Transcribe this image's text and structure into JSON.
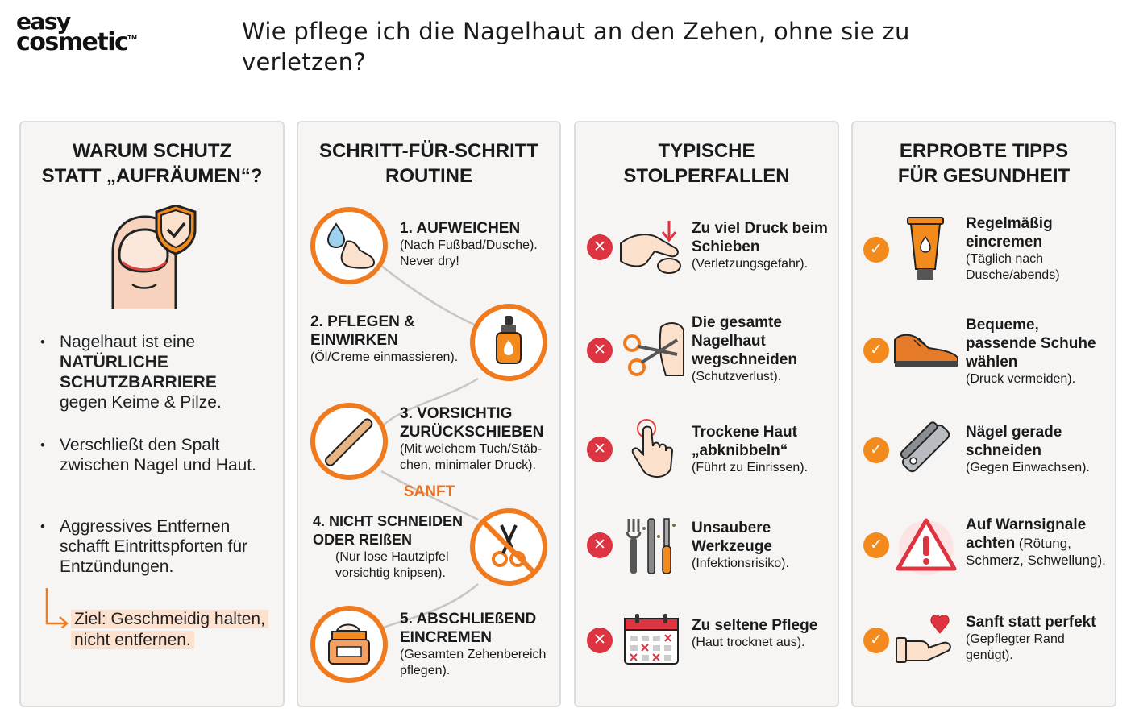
{
  "logo": {
    "line1": "easy",
    "line2": "cosmetic",
    "tm": "TM"
  },
  "page_title": "Wie pflege ich die Nagelhaut an den Zehen, ohne sie zu verletzen?",
  "colors": {
    "accent": "#f07a1e",
    "cross": "#dc3440",
    "card_bg": "#f6f5f4",
    "goal_bg": "#fde1cf"
  },
  "columns": [
    {
      "title": "WARUM SCHUTZ\nSTATT „AUFRÄUMEN“?",
      "icon": "toe-with-shield-icon",
      "bullets": [
        {
          "bullet": "•",
          "pre": "Nagelhaut ist eine ",
          "strong": "NATÜRLICHE SCHUTZBARRIERE",
          "post": " gegen Keime & Pilze."
        },
        {
          "bullet": "•",
          "pre": "Verschließt den Spalt zwischen Nagel und Haut.",
          "strong": "",
          "post": ""
        },
        {
          "bullet": "•",
          "pre": "Aggressives Entfernen schafft Eintrittspforten für Entzündungen.",
          "strong": "",
          "post": ""
        }
      ],
      "goal": "Ziel: Geschmeidig halten, nicht entfernen."
    },
    {
      "title": "SCHRITT-FÜR-SCHRITT\nROUTINE",
      "steps": [
        {
          "title": "1. AUFWEICHEN",
          "note": "(Nach Fußbad/Dusche). Never dry!",
          "icon": "foot-water-drop-icon"
        },
        {
          "title": "2. PFLEGEN & EINWIRKEN",
          "note": "(Öl/Creme einmassieren).",
          "icon": "oil-dropper-bottle-icon"
        },
        {
          "title": "3. VORSICHTIG ZURÜCKSCHIEBEN",
          "note": "(Mit weichem Tuch/Stäb-chen, minimaler Druck).",
          "icon": "cuticle-stick-icon"
        },
        {
          "title": "4. NICHT SCHNEIDEN ODER REIßEN",
          "note": "(Nur lose Hautzipfel vorsichtig knipsen).",
          "icon": "no-scissors-icon"
        },
        {
          "title": "5. ABSCHLIEßEND EINCREMEN",
          "note": "(Gesamten Zehenbereich pflegen).",
          "icon": "cream-jar-icon"
        }
      ],
      "sanft_label": "SANFT"
    },
    {
      "title": "TYPISCHE\nSTOLPERFALLEN",
      "items": [
        {
          "mark": "✕",
          "title": "Zu viel Druck beim Schieben",
          "note": "(Verletzungsgefahr).",
          "icon": "pressing-finger-icon"
        },
        {
          "mark": "✕",
          "title": "Die gesamte Nagelhaut wegschneiden",
          "note": "(Schutzverlust).",
          "icon": "scissors-cutting-icon"
        },
        {
          "mark": "✕",
          "title": "Trockene Haut „abknibbeln“",
          "note": "(Führt zu Einrissen).",
          "icon": "picking-hand-icon"
        },
        {
          "mark": "✕",
          "title": "Unsaubere Werkzeuge",
          "note": "(Infektionsrisiko).",
          "icon": "dirty-tools-icon"
        },
        {
          "mark": "✕",
          "title": "Zu seltene Pflege",
          "note": "(Haut trocknet aus).",
          "icon": "calendar-missed-icon"
        }
      ]
    },
    {
      "title": "ERPROBTE TIPPS\nFÜR GESUNDHEIT",
      "items": [
        {
          "mark": "✓",
          "title": "Regelmäßig eincremen",
          "note": "(Täglich nach Dusche/abends)",
          "icon": "cream-tube-icon"
        },
        {
          "mark": "✓",
          "title": "Bequeme, passende Schuhe wählen",
          "note": "(Druck vermeiden).",
          "icon": "shoe-icon"
        },
        {
          "mark": "✓",
          "title": "Nägel gerade schneiden",
          "note": "(Gegen Einwachsen).",
          "icon": "nail-clipper-icon"
        },
        {
          "mark": "✓",
          "title": "Auf Warnsignale achten",
          "note": "(Rötung, Schmerz, Schwellung).",
          "icon": "warning-triangle-icon"
        },
        {
          "mark": "✓",
          "title": "Sanft statt perfekt",
          "note": "(Gepflegter Rand genügt).",
          "icon": "hand-heart-icon"
        }
      ]
    }
  ]
}
